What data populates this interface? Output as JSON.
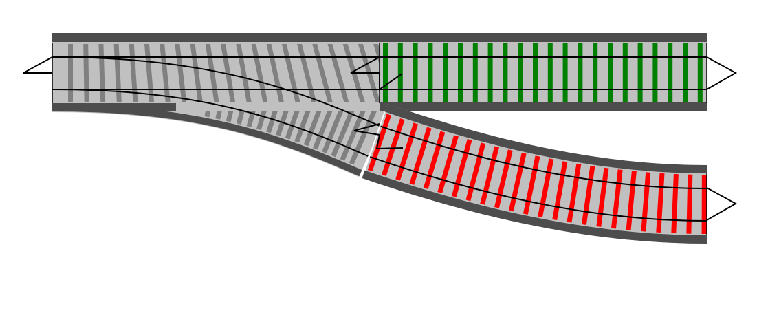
{
  "colors": {
    "background": "#ffffff",
    "ballast": "#c0c0c0",
    "bed_edge": "#4d4d4d",
    "turnout_tie": "#808080",
    "straight_tie": "#008000",
    "curve_tie": "#ff0000",
    "rail": "#000000"
  },
  "sections": [
    {
      "id": "turnout",
      "kind": "switch",
      "tie_color": "turnout_tie"
    },
    {
      "id": "straight-track",
      "kind": "straight",
      "tie_color": "straight_tie"
    },
    {
      "id": "curved-track",
      "kind": "curve",
      "tie_color": "curve_tie"
    }
  ],
  "connectors": [
    {
      "id": "turnout-start",
      "label": ""
    },
    {
      "id": "straight-end",
      "label": ""
    },
    {
      "id": "curve-end",
      "label": ""
    }
  ]
}
